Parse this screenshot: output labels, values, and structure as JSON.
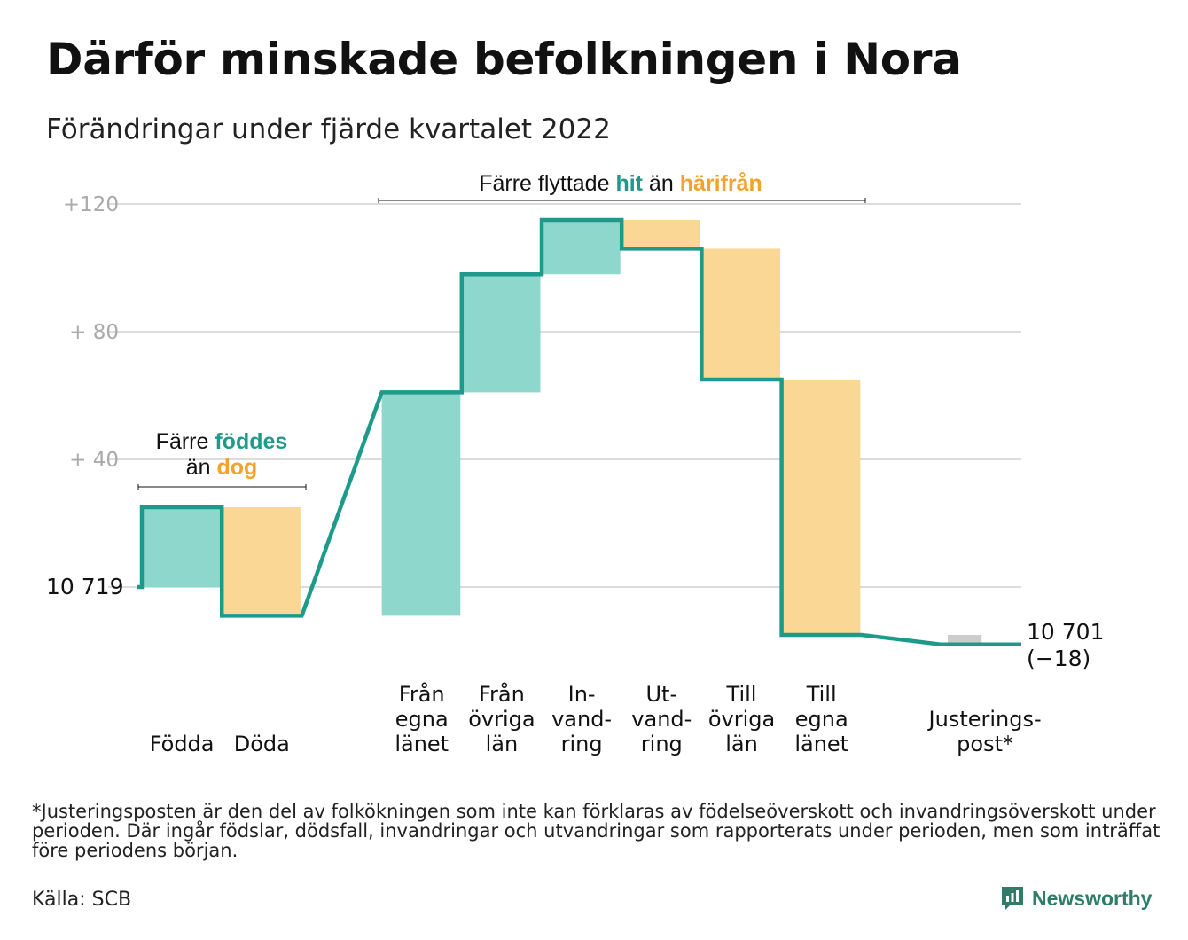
{
  "title": "Därför minskade befolkningen i Nora",
  "subtitle": "Förändringar under fjärde kvartalet 2022",
  "footnote": "*Justeringsposten är den del av folkökningen som inte kan förklaras av födelseöverskott och invandringsöverskott under perioden. Där ingår födslar, dödsfall, invandringar och utvandringar som rapporterats under perioden, men som inträffat före periodens början.",
  "source": "Källa: SCB",
  "logo": {
    "text": "Newsworthy",
    "icon": "newsworthy-logo-icon"
  },
  "colors": {
    "increase": "#8ed7cd",
    "decrease": "#fbd795",
    "adjustment": "#cccccc",
    "line": "#1e9a8a",
    "grid": "#dcdcdc",
    "tick": "#aaaaaa"
  },
  "annotations": {
    "births": {
      "line1": "Färre ",
      "hl1": "föddes",
      "line2": "än ",
      "hl2": "dog"
    },
    "migration": {
      "pre": "Färre flyttade ",
      "hl1": "hit",
      "mid": " än ",
      "hl2": "härifrån"
    }
  },
  "chart_data": {
    "type": "waterfall",
    "start": {
      "label": "10 719",
      "value": 0
    },
    "end": {
      "label": "10 701",
      "change_label": "(−18)",
      "value": -18
    },
    "yticks": [
      {
        "value": 40,
        "label": "+ 40"
      },
      {
        "value": 80,
        "label": "+ 80"
      },
      {
        "value": 120,
        "label": "+120"
      }
    ],
    "steps": [
      {
        "label": [
          "Födda"
        ],
        "change": 25,
        "kind": "increase",
        "slot": 0
      },
      {
        "label": [
          "Döda"
        ],
        "change": -34,
        "kind": "decrease",
        "slot": 1
      },
      {
        "label": [
          "Från",
          "egna",
          "länet"
        ],
        "change": 70,
        "kind": "increase",
        "slot": 3
      },
      {
        "label": [
          "Från",
          "övriga",
          "län"
        ],
        "change": 37,
        "kind": "increase",
        "slot": 4
      },
      {
        "label": [
          "In-",
          "vand-",
          "ring"
        ],
        "change": 17,
        "kind": "increase",
        "slot": 5
      },
      {
        "label": [
          "Ut-",
          "vand-",
          "ring"
        ],
        "change": -9,
        "kind": "decrease",
        "slot": 6
      },
      {
        "label": [
          "Till",
          "övriga",
          "län"
        ],
        "change": -41,
        "kind": "decrease",
        "slot": 7
      },
      {
        "label": [
          "Till",
          "egna",
          "länet"
        ],
        "change": -80,
        "kind": "decrease",
        "slot": 8
      },
      {
        "label": [
          "Justerings-",
          "post*"
        ],
        "change": -3,
        "kind": "adjustment",
        "slot": 10
      }
    ]
  }
}
